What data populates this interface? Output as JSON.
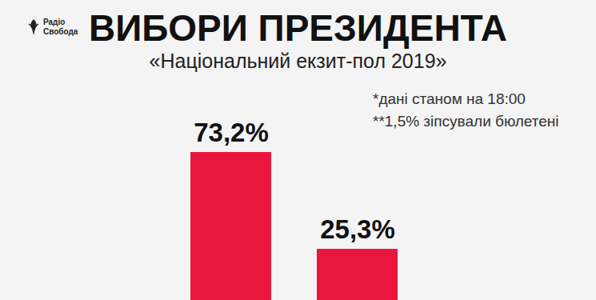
{
  "chart_data": {
    "type": "bar",
    "title": "ВИБОРИ ПРЕЗИДЕНТА",
    "subtitle": "«Національний екзит-пол 2019»",
    "annotations": [
      "*дані станом на 18:00",
      "**1,5% зіпсували бюлетені"
    ],
    "source": "Радіо Свобода",
    "categories": [
      null,
      null
    ],
    "values": [
      73.2,
      25.3
    ],
    "value_labels": [
      "73,2%",
      "25,3%"
    ],
    "color": "#e9173e",
    "ylim": [
      0,
      73.2
    ],
    "yticks": [],
    "tick_labels": false,
    "data_labels": true,
    "grid": false
  }
}
